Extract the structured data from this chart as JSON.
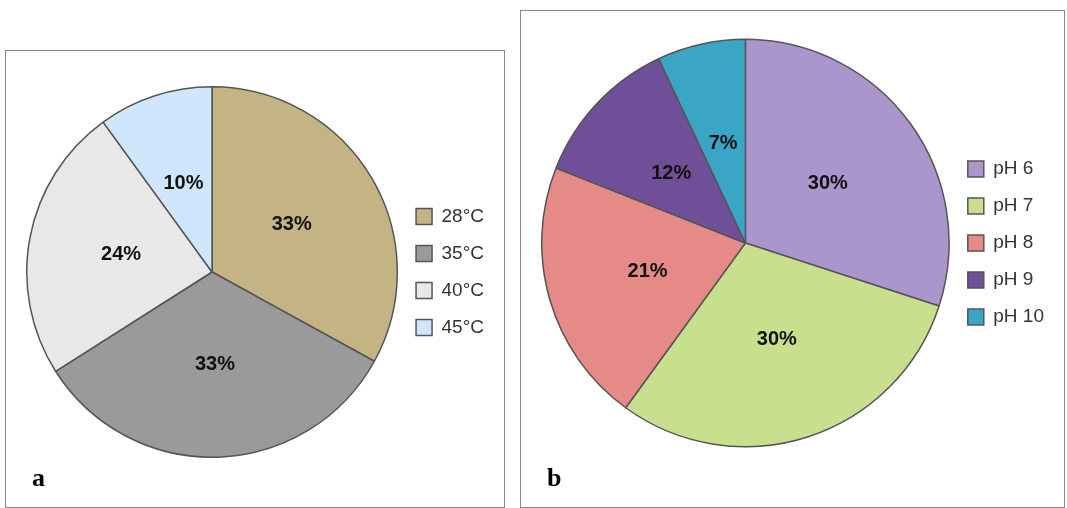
{
  "chart_data": [
    {
      "type": "pie",
      "categories": [
        "28°C",
        "35°C",
        "40°C",
        "45°C"
      ],
      "values": [
        33,
        33,
        24,
        10
      ],
      "colors": [
        "#c4b484",
        "#9a9a9a",
        "#e8e8e8",
        "#cfe6fc"
      ],
      "value_labels": [
        "33%",
        "33%",
        "24%",
        "10%"
      ],
      "legend": "right",
      "annotations": [
        "a"
      ]
    },
    {
      "type": "pie",
      "categories": [
        "pH 6",
        "pH 7",
        "pH 8",
        "pH 9",
        "pH 10"
      ],
      "values": [
        30,
        30,
        21,
        12,
        7
      ],
      "colors": [
        "#ab95cd",
        "#c8e08e",
        "#e58a87",
        "#6f4f97",
        "#3ba5c5"
      ],
      "value_labels": [
        "30%",
        "30%",
        "21%",
        "12%",
        "7%"
      ],
      "legend": "right",
      "annotations": [
        "b"
      ]
    }
  ]
}
